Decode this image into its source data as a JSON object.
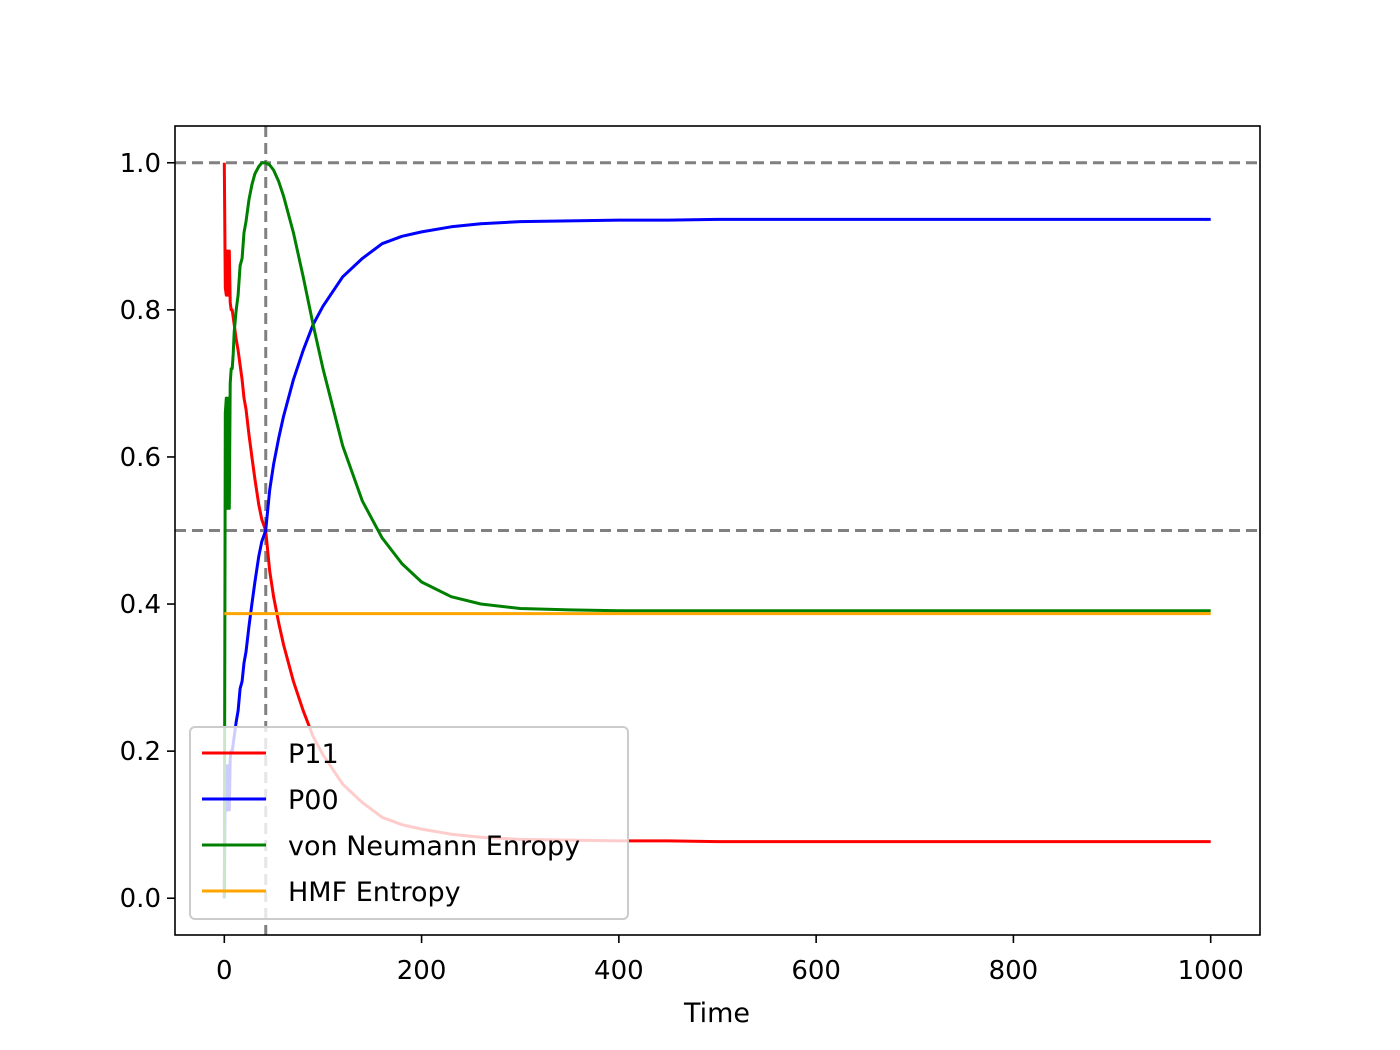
{
  "chart_data": {
    "type": "line",
    "title": "",
    "xlabel": "Time",
    "ylabel": "",
    "xlim": [
      -50,
      1050
    ],
    "ylim": [
      -0.05,
      1.05
    ],
    "xticks": [
      0,
      200,
      400,
      600,
      800,
      1000
    ],
    "yticks": [
      0.0,
      0.2,
      0.4,
      0.6,
      0.8,
      1.0
    ],
    "xtick_labels": [
      "0",
      "200",
      "400",
      "600",
      "800",
      "1000"
    ],
    "ytick_labels": [
      "0.0",
      "0.2",
      "0.4",
      "0.6",
      "0.8",
      "1.0"
    ],
    "grid": false,
    "legend_position": "lower-left",
    "reference_lines": [
      {
        "orientation": "horizontal",
        "value": 1.0,
        "style": "dashed",
        "color": "#808080"
      },
      {
        "orientation": "horizontal",
        "value": 0.5,
        "style": "dashed",
        "color": "#808080"
      },
      {
        "orientation": "vertical",
        "value": 42,
        "style": "dashed",
        "color": "#808080"
      }
    ],
    "series": [
      {
        "name": "P11",
        "color": "#ff0000",
        "x": [
          0,
          1,
          2,
          3,
          4,
          5,
          6,
          7,
          8,
          9,
          10,
          12,
          14,
          16,
          18,
          20,
          22,
          25,
          28,
          31,
          35,
          38,
          42,
          46,
          50,
          55,
          60,
          70,
          80,
          90,
          100,
          120,
          140,
          160,
          180,
          200,
          230,
          260,
          300,
          350,
          400,
          450,
          500,
          600,
          700,
          800,
          900,
          1000
        ],
        "y": [
          1.0,
          0.83,
          0.82,
          0.88,
          0.82,
          0.88,
          0.81,
          0.8,
          0.8,
          0.79,
          0.78,
          0.76,
          0.745,
          0.725,
          0.705,
          0.68,
          0.665,
          0.63,
          0.6,
          0.57,
          0.535,
          0.515,
          0.5,
          0.445,
          0.41,
          0.375,
          0.345,
          0.295,
          0.255,
          0.22,
          0.195,
          0.155,
          0.13,
          0.11,
          0.1,
          0.094,
          0.087,
          0.083,
          0.08,
          0.079,
          0.078,
          0.078,
          0.077,
          0.077,
          0.077,
          0.077,
          0.077,
          0.077
        ]
      },
      {
        "name": "P00",
        "color": "#0000ff",
        "x": [
          0,
          1,
          2,
          3,
          4,
          5,
          6,
          7,
          8,
          9,
          10,
          12,
          14,
          16,
          18,
          20,
          22,
          25,
          28,
          31,
          35,
          38,
          42,
          46,
          50,
          55,
          60,
          70,
          80,
          90,
          100,
          120,
          140,
          160,
          180,
          200,
          230,
          260,
          300,
          350,
          400,
          450,
          500,
          600,
          700,
          800,
          900,
          1000
        ],
        "y": [
          0.0,
          0.17,
          0.18,
          0.12,
          0.18,
          0.12,
          0.19,
          0.2,
          0.2,
          0.21,
          0.22,
          0.24,
          0.255,
          0.285,
          0.295,
          0.32,
          0.335,
          0.37,
          0.4,
          0.43,
          0.465,
          0.485,
          0.5,
          0.555,
          0.59,
          0.625,
          0.655,
          0.705,
          0.745,
          0.78,
          0.805,
          0.845,
          0.87,
          0.89,
          0.9,
          0.906,
          0.913,
          0.917,
          0.92,
          0.921,
          0.922,
          0.922,
          0.923,
          0.923,
          0.923,
          0.923,
          0.923,
          0.923
        ]
      },
      {
        "name": "von Neumann Enropy",
        "color": "#008000",
        "x": [
          0,
          1,
          2,
          3,
          4,
          5,
          6,
          7,
          8,
          9,
          10,
          12,
          14,
          16,
          18,
          20,
          22,
          25,
          28,
          31,
          35,
          38,
          42,
          46,
          50,
          55,
          60,
          70,
          80,
          90,
          100,
          120,
          140,
          160,
          180,
          200,
          230,
          260,
          300,
          350,
          400,
          450,
          500,
          600,
          700,
          800,
          900,
          1000
        ],
        "y": [
          0.0,
          0.66,
          0.68,
          0.53,
          0.68,
          0.53,
          0.7,
          0.72,
          0.72,
          0.74,
          0.77,
          0.8,
          0.82,
          0.86,
          0.87,
          0.905,
          0.92,
          0.95,
          0.97,
          0.985,
          0.995,
          1.0,
          1.0,
          0.997,
          0.99,
          0.975,
          0.955,
          0.905,
          0.845,
          0.78,
          0.72,
          0.615,
          0.54,
          0.49,
          0.455,
          0.43,
          0.41,
          0.4,
          0.394,
          0.392,
          0.391,
          0.391,
          0.391,
          0.391,
          0.391,
          0.391,
          0.391,
          0.391
        ]
      },
      {
        "name": "HMF Entropy",
        "color": "#ffa500",
        "x": [
          0,
          1000
        ],
        "y": [
          0.387,
          0.387
        ]
      }
    ]
  }
}
